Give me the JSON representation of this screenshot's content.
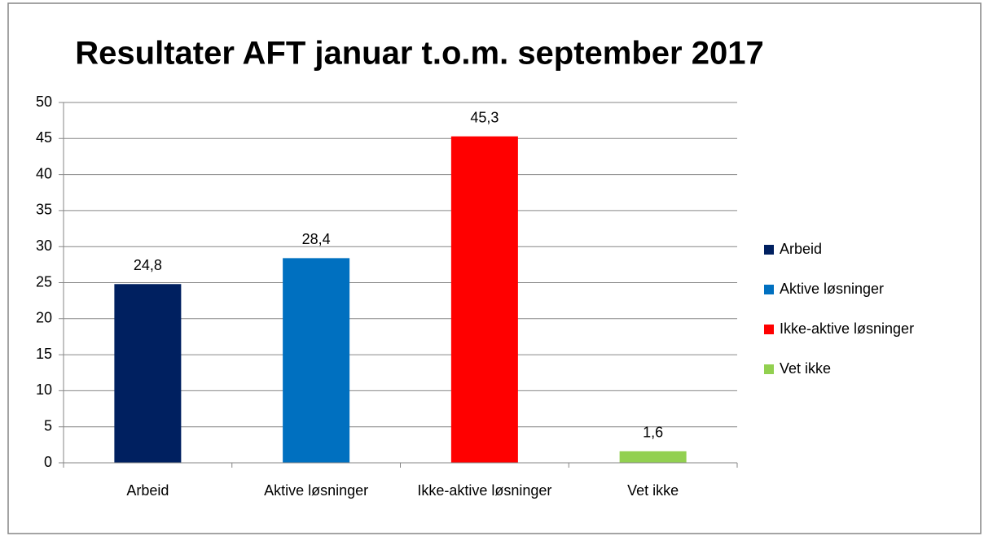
{
  "chart_data": {
    "type": "bar",
    "title": "Resultater AFT januar t.o.m. september 2017",
    "categories": [
      "Arbeid",
      "Aktive løsninger",
      "Ikke-aktive løsninger",
      "Vet ikke"
    ],
    "values": [
      24.8,
      28.4,
      45.3,
      1.6
    ],
    "value_labels": [
      "24,8",
      "28,4",
      "45,3",
      "1,6"
    ],
    "colors": [
      "#002060",
      "#0070c0",
      "#ff0000",
      "#92d050"
    ],
    "ylim": [
      0,
      50
    ],
    "yticks": [
      0,
      5,
      10,
      15,
      20,
      25,
      30,
      35,
      40,
      45,
      50
    ],
    "grid": true,
    "legend": "right"
  }
}
